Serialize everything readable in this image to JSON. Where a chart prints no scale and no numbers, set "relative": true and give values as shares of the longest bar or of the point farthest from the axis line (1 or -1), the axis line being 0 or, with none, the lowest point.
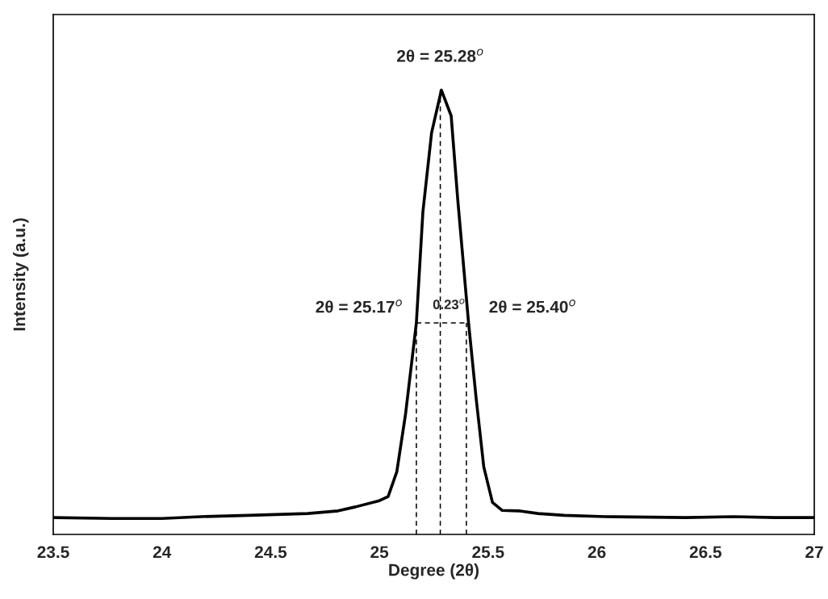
{
  "chart_data": {
    "type": "line",
    "relative": true,
    "xlabel": "Degree (2θ)",
    "ylabel": "Intensity (a.u.)",
    "xlim": [
      23.5,
      27
    ],
    "xticks": [
      23.5,
      24,
      24.5,
      25,
      25.5,
      26,
      26.5,
      27
    ],
    "tick_labels": "x",
    "grid": false,
    "legend": false,
    "marker": "none",
    "line_style": "solid",
    "series": [
      {
        "color": "#000000",
        "x": [
          23.5,
          23.77,
          24.0,
          24.18,
          24.4,
          24.67,
          24.81,
          24.89,
          25.0,
          25.04,
          25.08,
          25.12,
          25.17,
          25.2,
          25.24,
          25.285,
          25.33,
          25.36,
          25.41,
          25.445,
          25.48,
          25.52,
          25.565,
          25.64,
          25.73,
          25.85,
          26.04,
          26.41,
          26.63,
          26.82,
          27.0
        ],
        "values": [
          0.038,
          0.036,
          0.036,
          0.04,
          0.043,
          0.047,
          0.053,
          0.062,
          0.076,
          0.085,
          0.141,
          0.27,
          0.476,
          0.726,
          0.904,
          1.0,
          0.942,
          0.755,
          0.476,
          0.306,
          0.152,
          0.072,
          0.054,
          0.053,
          0.047,
          0.043,
          0.04,
          0.038,
          0.04,
          0.038,
          0.038
        ]
      },
      {
        "color": "#000000",
        "line_style": "dashed",
        "x": [
          25.17,
          25.17
        ],
        "values": [
          0,
          0.476
        ]
      },
      {
        "color": "#000000",
        "line_style": "dashed",
        "x": [
          25.28,
          25.28
        ],
        "values": [
          0,
          1.0
        ]
      },
      {
        "color": "#000000",
        "line_style": "dashed",
        "x": [
          25.4,
          25.4
        ],
        "values": [
          0,
          0.476
        ]
      },
      {
        "color": "#000000",
        "line_style": "dashed",
        "x": [
          25.17,
          25.4
        ],
        "values": [
          0.476,
          0.476
        ]
      }
    ],
    "annotations": [
      {
        "text": "2θ = 25.28$^{o}$",
        "x": 25.28,
        "y": 1.0
      },
      {
        "text": "2θ = 25.17$^{o}$",
        "x": 25.17,
        "y": 0.476
      },
      {
        "text": "2θ = 25.40$^{o}$",
        "x": 25.4,
        "y": 0.476
      },
      "0.23$^{o}$"
    ]
  }
}
